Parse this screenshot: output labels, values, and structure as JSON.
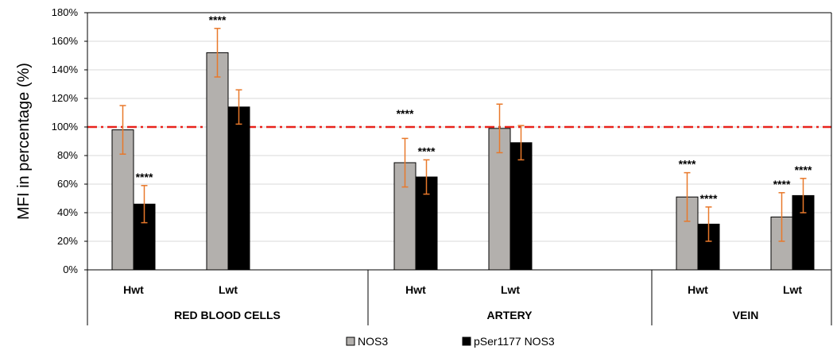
{
  "chart_data": {
    "type": "bar",
    "ylabel": "MFI in percentage  (%)",
    "ylim": [
      0,
      180
    ],
    "ytick_step": 20,
    "ytick_labels": [
      "0%",
      "20%",
      "40%",
      "60%",
      "80%",
      "100%",
      "120%",
      "140%",
      "160%",
      "180%"
    ],
    "grid": true,
    "reference_line": {
      "value": 100,
      "color": "#e8231c",
      "style": "dash-dot"
    },
    "groups": [
      {
        "label": "RED BLOOD CELLS",
        "subgroups": [
          "Hwt",
          "Lwt"
        ]
      },
      {
        "label": "ARTERY",
        "subgroups": [
          "Hwt",
          "Lwt"
        ]
      },
      {
        "label": "VEIN",
        "subgroups": [
          "Hwt",
          "Lwt"
        ]
      }
    ],
    "categories": [
      "RED BLOOD CELLS Hwt",
      "RED BLOOD CELLS Lwt",
      "ARTERY Hwt",
      "ARTERY Lwt",
      "VEIN Hwt",
      "VEIN Lwt"
    ],
    "series": [
      {
        "name": "NOS3",
        "color": "#b3b0ad",
        "values": [
          98,
          152,
          75,
          99,
          51,
          37
        ],
        "errors": [
          17,
          17,
          17,
          17,
          17,
          17
        ],
        "significance": [
          "",
          "****",
          "****",
          "",
          "****",
          "****"
        ]
      },
      {
        "name": "pSer1177 NOS3",
        "color": "#000000",
        "values": [
          46,
          114,
          65,
          89,
          32,
          52
        ],
        "errors": [
          13,
          12,
          12,
          12,
          12,
          12
        ],
        "significance": [
          "****",
          "",
          "****",
          "",
          "****",
          "****"
        ]
      }
    ],
    "error_bar_color": "#e8782a",
    "legend_position": "bottom"
  }
}
